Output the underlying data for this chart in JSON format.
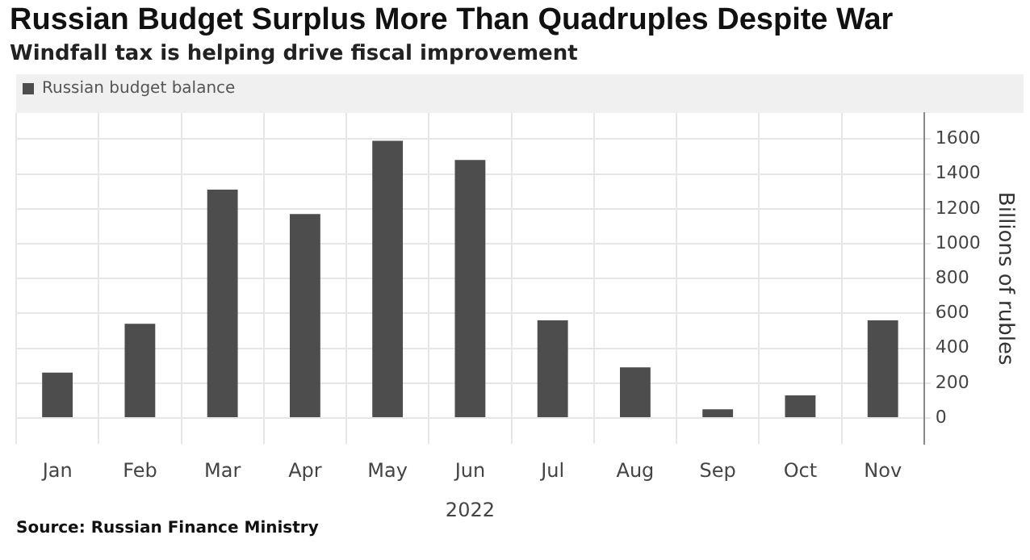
{
  "chart_data": {
    "type": "bar",
    "title": "Russian Budget Surplus More Than Quadruples Despite War",
    "subtitle": "Windfall tax is helping drive fiscal improvement",
    "ylabel": "Billions of rubles",
    "categories": [
      "Jan",
      "Feb",
      "Mar",
      "Apr",
      "May",
      "Jun",
      "Jul",
      "Aug",
      "Sep",
      "Oct",
      "Nov"
    ],
    "series": [
      {
        "name": "Russian budget balance",
        "color": "#4d4d4d",
        "values": [
          260,
          540,
          1310,
          1170,
          1590,
          1480,
          560,
          290,
          50,
          130,
          560
        ]
      }
    ],
    "ylim": [
      -150,
      1750
    ],
    "yticks": [
      0,
      200,
      400,
      600,
      800,
      1000,
      1200,
      1400,
      1600
    ],
    "grid": true,
    "legend": "top left",
    "xlabel": "2022",
    "annotations": [
      "Source: Russian Finance Ministry"
    ]
  }
}
